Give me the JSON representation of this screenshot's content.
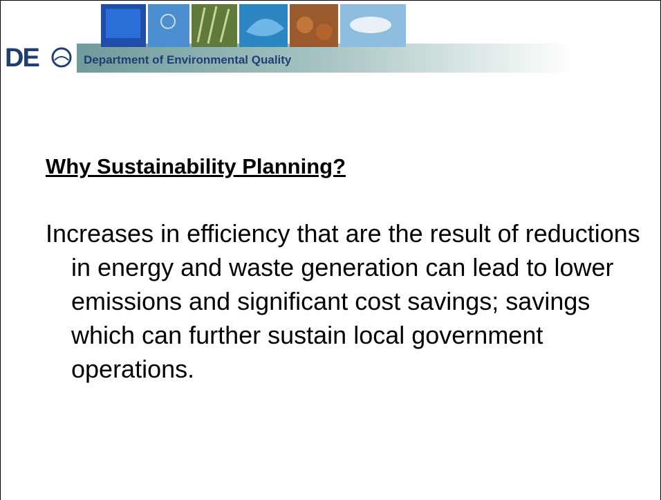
{
  "header": {
    "logo": "DE",
    "organization": "Department of Environmental Quality"
  },
  "slide": {
    "title": "Why Sustainability Planning?",
    "body": "Increases in efficiency that are the result of reductions in energy and waste generation can lead to lower emissions and significant cost savings; savings which can further sustain local government operations."
  }
}
